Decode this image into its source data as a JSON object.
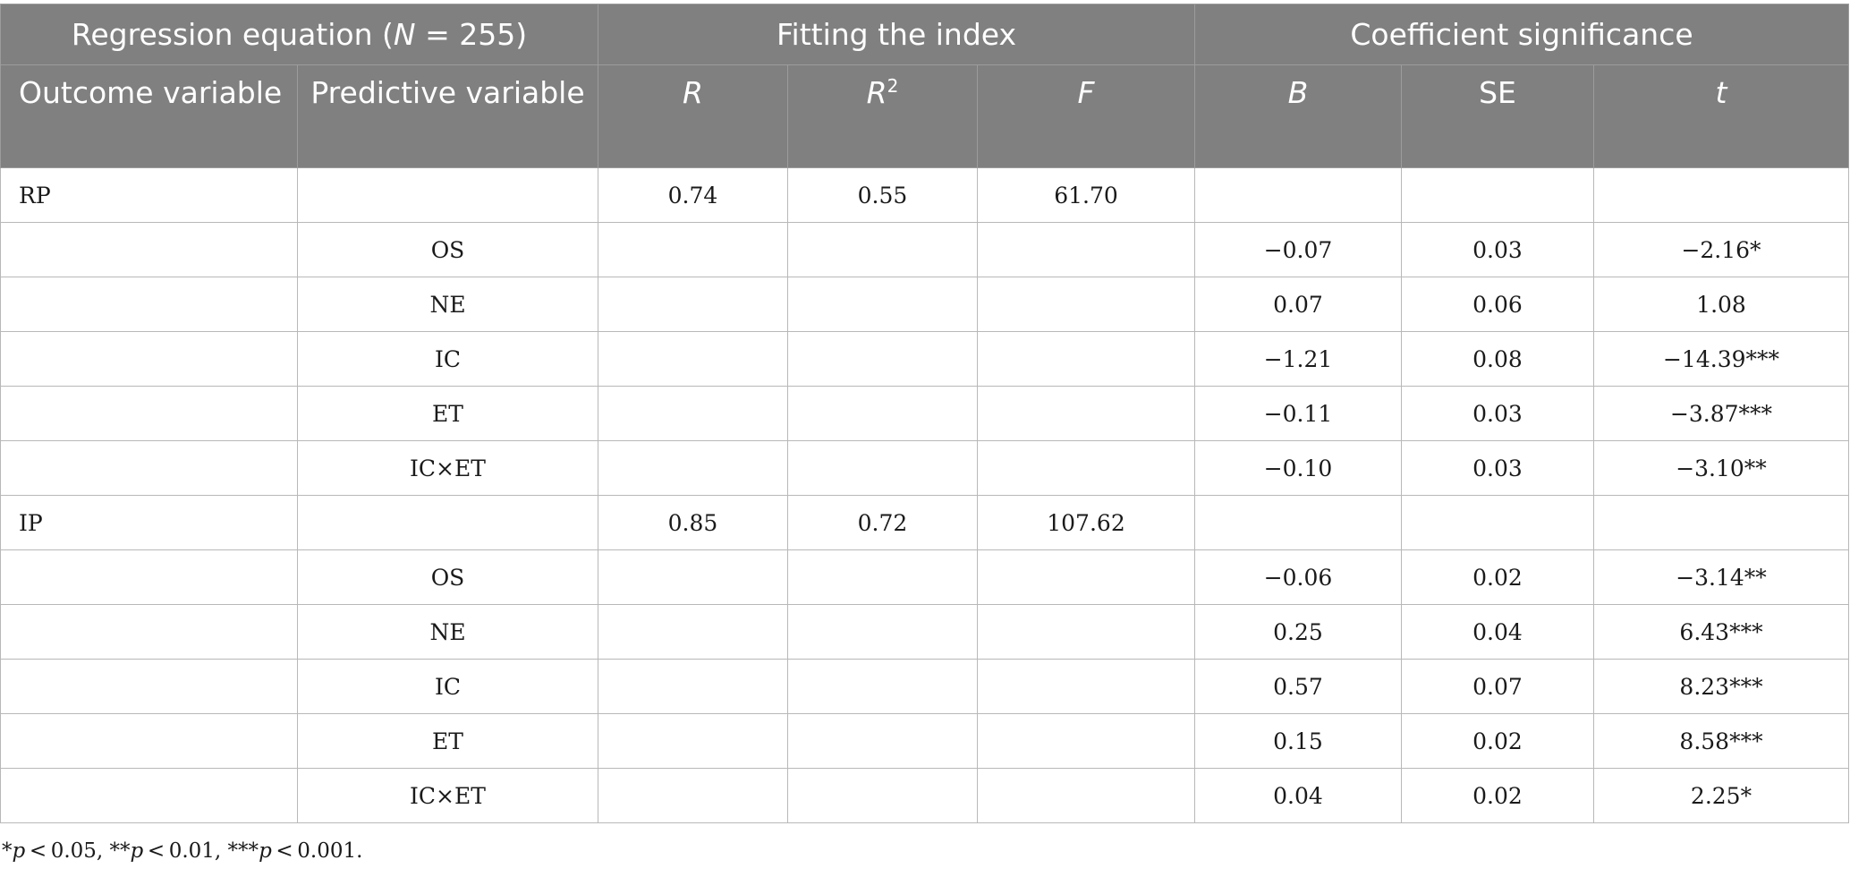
{
  "table": {
    "group_headers": {
      "regression_prefix": "Regression equation (",
      "regression_n": "N",
      "regression_suffix": " = 255)",
      "fitting": "Fitting the index",
      "coefficient": "Coefficient significance"
    },
    "column_headers": {
      "outcome": "Outcome variable",
      "predictive": "Predictive variable",
      "r": "R",
      "r2_base": "R",
      "r2_sup": "2",
      "f": "F",
      "b": "B",
      "se": "SE",
      "t": "t"
    },
    "rows": [
      {
        "outcome": "RP",
        "predictor": "",
        "r": "0.74",
        "r2": "0.55",
        "f": "61.70",
        "b": "",
        "se": "",
        "t": ""
      },
      {
        "outcome": "",
        "predictor": "OS",
        "r": "",
        "r2": "",
        "f": "",
        "b": "−0.07",
        "se": "0.03",
        "t": "−2.16*"
      },
      {
        "outcome": "",
        "predictor": "NE",
        "r": "",
        "r2": "",
        "f": "",
        "b": "0.07",
        "se": "0.06",
        "t": "1.08"
      },
      {
        "outcome": "",
        "predictor": "IC",
        "r": "",
        "r2": "",
        "f": "",
        "b": "−1.21",
        "se": "0.08",
        "t": "−14.39***"
      },
      {
        "outcome": "",
        "predictor": "ET",
        "r": "",
        "r2": "",
        "f": "",
        "b": "−0.11",
        "se": "0.03",
        "t": "−3.87***"
      },
      {
        "outcome": "",
        "predictor": "IC×ET",
        "r": "",
        "r2": "",
        "f": "",
        "b": "−0.10",
        "se": "0.03",
        "t": "−3.10**"
      },
      {
        "outcome": "IP",
        "predictor": "",
        "r": "0.85",
        "r2": "0.72",
        "f": "107.62",
        "b": "",
        "se": "",
        "t": ""
      },
      {
        "outcome": "",
        "predictor": "OS",
        "r": "",
        "r2": "",
        "f": "",
        "b": "−0.06",
        "se": "0.02",
        "t": "−3.14**"
      },
      {
        "outcome": "",
        "predictor": "NE",
        "r": "",
        "r2": "",
        "f": "",
        "b": "0.25",
        "se": "0.04",
        "t": "6.43***"
      },
      {
        "outcome": "",
        "predictor": "IC",
        "r": "",
        "r2": "",
        "f": "",
        "b": "0.57",
        "se": "0.07",
        "t": "8.23***"
      },
      {
        "outcome": "",
        "predictor": "ET",
        "r": "",
        "r2": "",
        "f": "",
        "b": "0.15",
        "se": "0.02",
        "t": "8.58***"
      },
      {
        "outcome": "",
        "predictor": "IC×ET",
        "r": "",
        "r2": "",
        "f": "",
        "b": "0.04",
        "se": "0.02",
        "t": "2.25*"
      }
    ]
  },
  "footnote": {
    "s1": "*",
    "p1": "p",
    "t1": " < 0.05, **",
    "p2": "p",
    "t2": " < 0.01, ***",
    "p3": "p",
    "t3": " < 0.001."
  }
}
